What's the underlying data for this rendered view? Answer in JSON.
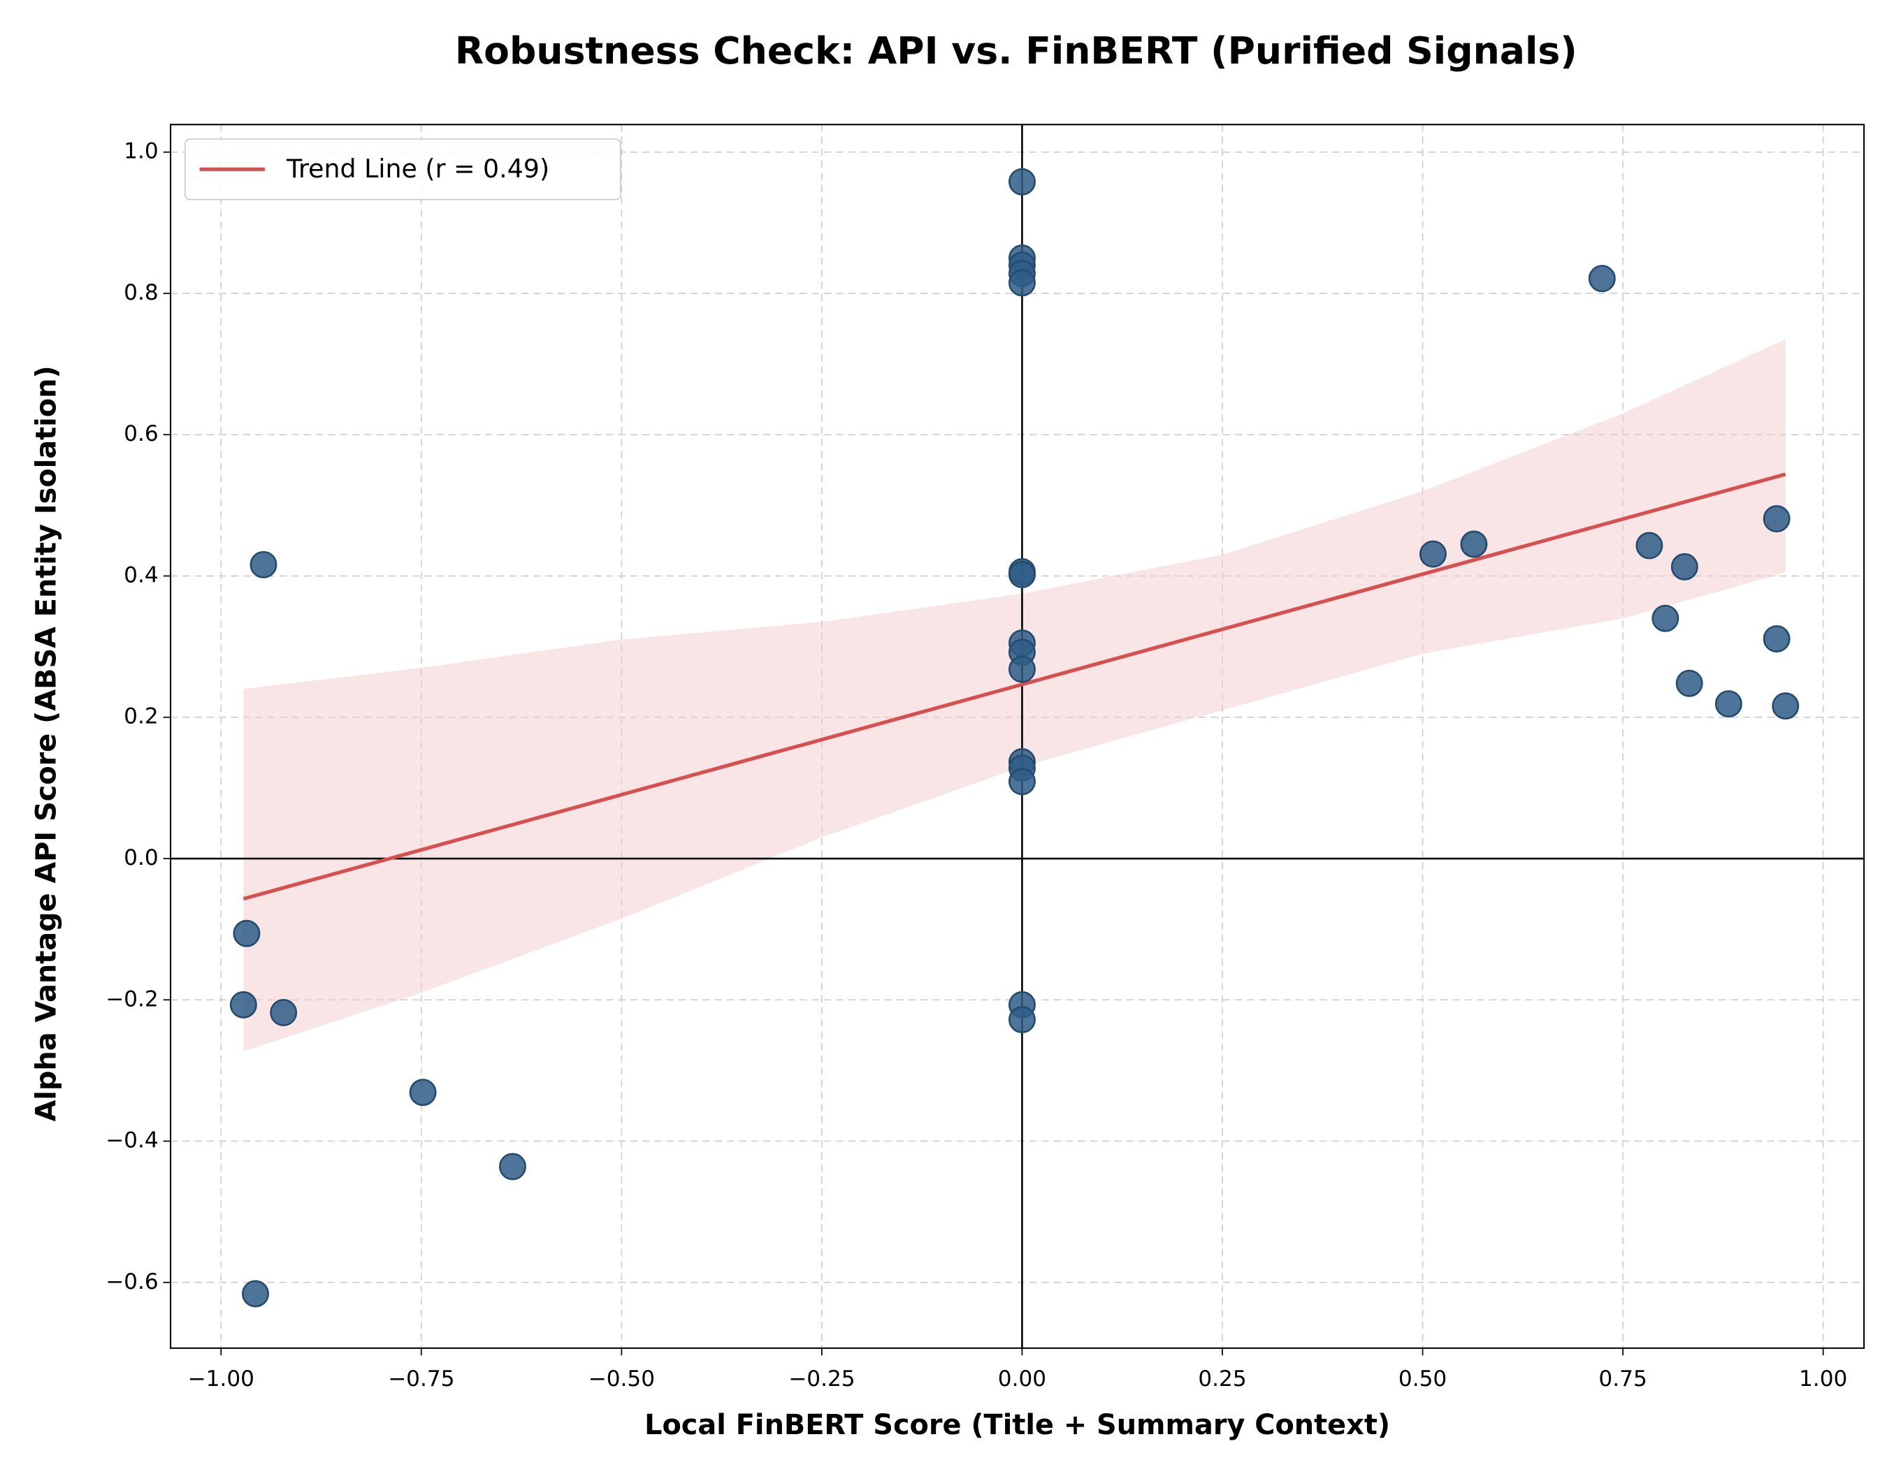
{
  "chart_data": {
    "type": "scatter",
    "title": "Robustness Check: API vs. FinBERT (Purified Signals)",
    "xlabel": "Local FinBERT Score (Title + Summary Context)",
    "ylabel": "Alpha Vantage API Score (ABSA Entity Isolation)",
    "xlim": [
      -1.063,
      1.051
    ],
    "ylim": [
      -0.693,
      1.039
    ],
    "xticks": [
      {
        "value": -1.0,
        "label": "−1.00"
      },
      {
        "value": -0.75,
        "label": "−0.75"
      },
      {
        "value": -0.5,
        "label": "−0.50"
      },
      {
        "value": -0.25,
        "label": "−0.25"
      },
      {
        "value": 0,
        "label": "0.00"
      },
      {
        "value": 0.25,
        "label": "0.25"
      },
      {
        "value": 0.5,
        "label": "0.50"
      },
      {
        "value": 0.75,
        "label": "0.75"
      },
      {
        "value": 1.0,
        "label": "1.00"
      }
    ],
    "yticks": [
      {
        "value": -0.6,
        "label": "−0.6"
      },
      {
        "value": -0.4,
        "label": "−0.4"
      },
      {
        "value": -0.2,
        "label": "−0.2"
      },
      {
        "value": 0,
        "label": "0.0"
      },
      {
        "value": 0.2,
        "label": "0.2"
      },
      {
        "value": 0.4,
        "label": "0.4"
      },
      {
        "value": 0.6,
        "label": "0.6"
      },
      {
        "value": 0.8,
        "label": "0.8"
      },
      {
        "value": 1.0,
        "label": "1.0"
      }
    ],
    "grid": true,
    "zero_lines": true,
    "legend": "upper left",
    "points": {
      "color": "#2f5d87",
      "x": [
        0,
        0,
        0,
        0,
        0,
        0.724,
        -0.947,
        0,
        0,
        0,
        0,
        0,
        0,
        0,
        0,
        0,
        0,
        0.513,
        0.564,
        0.783,
        0.827,
        0.803,
        0.833,
        0.882,
        0.942,
        0.942,
        0.953,
        -0.968,
        -0.972,
        -0.922,
        -0.748,
        -0.636,
        -0.957
      ],
      "y": [
        0.958,
        0.85,
        0.84,
        0.828,
        0.815,
        0.821,
        0.416,
        0.406,
        0.402,
        0.305,
        0.292,
        0.268,
        0.137,
        0.128,
        0.109,
        -0.207,
        -0.228,
        0.431,
        0.445,
        0.443,
        0.413,
        0.34,
        0.248,
        0.219,
        0.481,
        0.311,
        0.216,
        -0.106,
        -0.207,
        -0.218,
        -0.331,
        -0.436,
        -0.616
      ]
    },
    "trend": {
      "name": "Trend Line (r = 0.49)",
      "color": "#d65050",
      "x": [
        -0.972,
        0.953
      ],
      "y": [
        -0.057,
        0.544
      ]
    },
    "band": {
      "color": "#f4cccc",
      "x": [
        -0.972,
        -0.75,
        -0.5,
        -0.25,
        0,
        0.25,
        0.5,
        0.75,
        0.953
      ],
      "upper": [
        0.24,
        0.27,
        0.31,
        0.335,
        0.375,
        0.43,
        0.52,
        0.63,
        0.735
      ],
      "lower": [
        -0.273,
        -0.19,
        -0.085,
        0.03,
        0.13,
        0.21,
        0.29,
        0.34,
        0.405
      ]
    }
  }
}
